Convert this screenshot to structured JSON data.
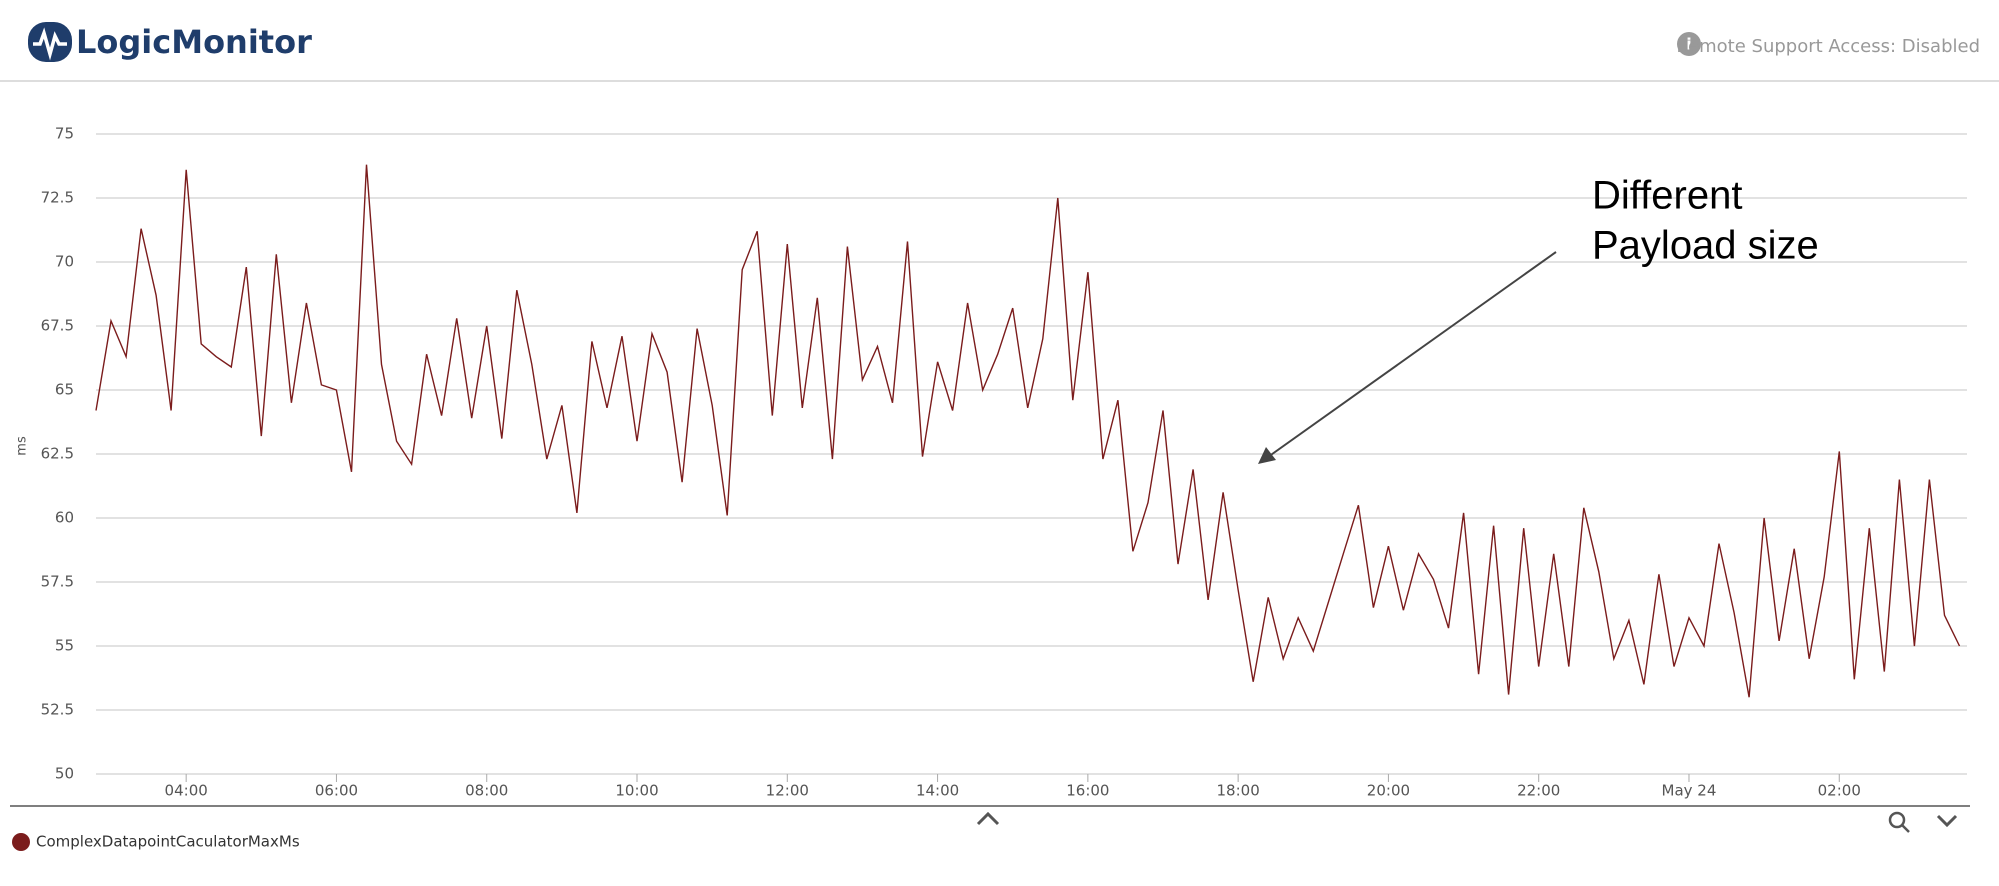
{
  "header": {
    "logo": "LogicMonitor",
    "status": "Remote Support Access: Disabled"
  },
  "chart_data": {
    "type": "line",
    "ylabel": "ms",
    "annotation": [
      "Different",
      "Payload size"
    ],
    "ylim": [
      50,
      75
    ],
    "yticks": [
      50,
      52.5,
      55,
      57.5,
      60,
      62.5,
      65,
      67.5,
      70,
      72.5,
      75
    ],
    "xlim": [
      2.8,
      27.7
    ],
    "xticks": [
      {
        "value": 4,
        "label": "04:00"
      },
      {
        "value": 6,
        "label": "06:00"
      },
      {
        "value": 8,
        "label": "08:00"
      },
      {
        "value": 10,
        "label": "10:00"
      },
      {
        "value": 12,
        "label": "12:00"
      },
      {
        "value": 14,
        "label": "14:00"
      },
      {
        "value": 16,
        "label": "16:00"
      },
      {
        "value": 18,
        "label": "18:00"
      },
      {
        "value": 20,
        "label": "20:00"
      },
      {
        "value": 22,
        "label": "22:00"
      },
      {
        "value": 24,
        "label": "May 24"
      },
      {
        "value": 26,
        "label": "02:00"
      }
    ],
    "grid": true,
    "x": [
      2.8,
      3,
      3.2,
      3.4,
      3.6,
      3.8,
      4,
      4.2,
      4.4,
      4.6,
      4.8,
      5,
      5.2,
      5.4,
      5.6,
      5.8,
      6,
      6.2,
      6.4,
      6.6,
      6.8,
      7,
      7.2,
      7.4,
      7.6,
      7.8,
      8,
      8.2,
      8.4,
      8.6,
      8.8,
      9,
      9.2,
      9.4,
      9.6,
      9.8,
      10,
      10.2,
      10.4,
      10.6,
      10.8,
      11,
      11.2,
      11.4,
      11.6,
      11.8,
      12,
      12.2,
      12.4,
      12.6,
      12.8,
      13,
      13.2,
      13.4,
      13.6,
      13.8,
      14,
      14.2,
      14.4,
      14.6,
      14.8,
      15,
      15.2,
      15.4,
      15.6,
      15.8,
      16,
      16.2,
      16.4,
      16.6,
      16.8,
      17,
      17.2,
      17.4,
      17.6,
      17.8,
      18,
      18.2,
      18.4,
      18.6,
      18.8,
      19,
      19.2,
      19.4,
      19.6,
      19.8,
      20,
      20.2,
      20.4,
      20.6,
      20.8,
      21,
      21.2,
      21.4,
      21.6,
      21.8,
      22,
      22.2,
      22.4,
      22.6,
      22.8,
      23,
      23.2,
      23.4,
      23.6,
      23.8,
      24,
      24.2,
      24.4,
      24.6,
      24.8,
      25,
      25.2,
      25.4,
      25.6,
      25.8,
      26,
      26.2,
      26.4,
      26.6,
      26.8,
      27,
      27.2,
      27.4,
      27.6
    ],
    "series": [
      {
        "name": "ComplexDatapointCaculatorMaxMs",
        "color": "#7b1c1c",
        "values": [
          64.2,
          67.7,
          66.3,
          71.3,
          68.7,
          64.2,
          73.6,
          66.8,
          66.3,
          65.9,
          69.8,
          63.2,
          70.3,
          64.5,
          68.4,
          65.2,
          65.0,
          61.8,
          73.8,
          66.0,
          63.0,
          62.1,
          66.4,
          64.0,
          67.8,
          63.9,
          67.5,
          63.1,
          68.9,
          66.0,
          62.3,
          64.4,
          60.2,
          66.9,
          64.3,
          67.1,
          63.0,
          67.2,
          65.7,
          61.4,
          67.4,
          64.4,
          60.1,
          69.7,
          71.2,
          64.0,
          70.7,
          64.3,
          68.6,
          62.3,
          70.6,
          65.4,
          66.7,
          64.5,
          70.8,
          62.4,
          66.1,
          64.2,
          68.4,
          65.0,
          66.4,
          68.2,
          64.3,
          67.0,
          72.5,
          64.6,
          69.6,
          62.3,
          64.6,
          58.7,
          60.6,
          64.2,
          58.2,
          61.9,
          56.8,
          61.0,
          57.2,
          53.6,
          56.9,
          54.5,
          56.1,
          54.8,
          56.7,
          58.6,
          60.5,
          56.5,
          58.9,
          56.4,
          58.6,
          57.6,
          55.7,
          60.2,
          53.9,
          59.7,
          53.1,
          59.6,
          54.2,
          58.6,
          54.2,
          60.4,
          57.9,
          54.5,
          56.0,
          53.5,
          57.8,
          54.2,
          56.1,
          55.0,
          59.0,
          56.3,
          53.0,
          60.0,
          55.2,
          58.8,
          54.5,
          57.7,
          62.6,
          53.7,
          59.6,
          54.0,
          61.5,
          55.0,
          61.5,
          56.2,
          55.0
        ]
      }
    ]
  }
}
